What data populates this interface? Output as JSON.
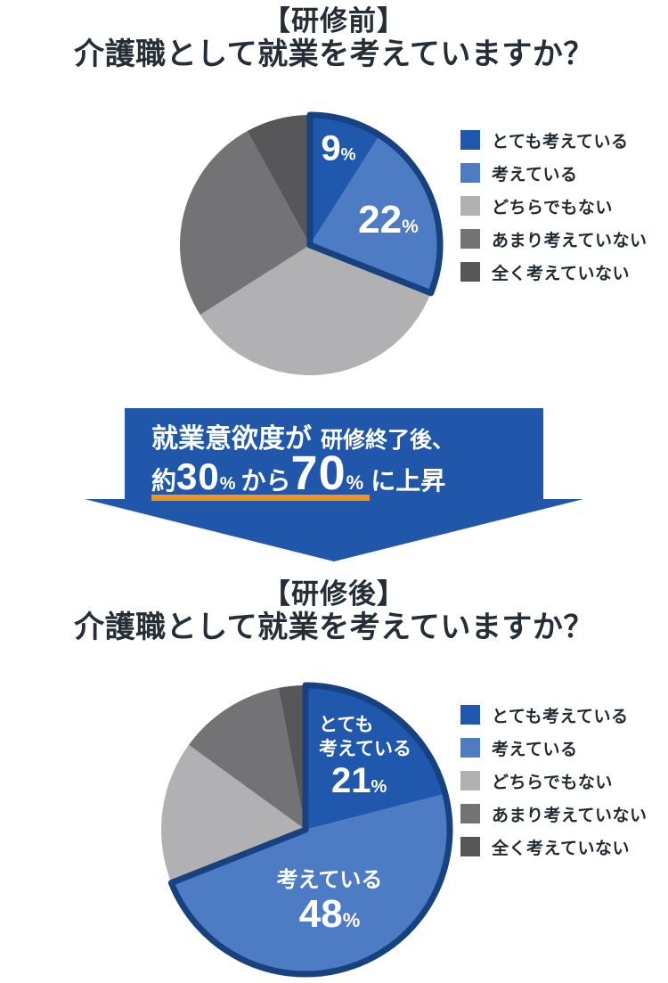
{
  "colors": {
    "background": "#ffffff",
    "title_text": "#252e37",
    "legend_text": "#222b33",
    "series": [
      "#2058ad",
      "#4d7cc5",
      "#b1b1b3",
      "#737375",
      "#57575a"
    ],
    "highlight_outline": "#17427f",
    "banner_bg": "#2057ab",
    "banner_text": "#ffffff",
    "underline_orange": "#ef941f",
    "pie_label_text": "#ffffff"
  },
  "before": {
    "title_line1": "【研修前】",
    "title_line2": "介護職として就業を考えていますか？",
    "labels": {
      "slice1_value": "9",
      "slice1_unit": "%",
      "slice2_value": "22",
      "slice2_unit": "%"
    }
  },
  "after": {
    "title_line1": "【研修後】",
    "title_line2": "介護職として就業を考えていますか？",
    "labels": {
      "slice1_name_line1": "とても",
      "slice1_name_line2": "考えている",
      "slice1_value": "21",
      "slice1_unit": "%",
      "slice2_name": "考えている",
      "slice2_value": "48",
      "slice2_unit": "%"
    }
  },
  "legend": {
    "items": [
      {
        "label": "とても考えている",
        "color": "#2058ad"
      },
      {
        "label": "考えている",
        "color": "#4d7cc5"
      },
      {
        "label": "どちらでもない",
        "color": "#b1b1b3"
      },
      {
        "label": "あまり考えていない",
        "color": "#737375"
      },
      {
        "label": "全く考えていない",
        "color": "#57575a"
      }
    ]
  },
  "banner": {
    "line1_part1": "就業意欲度が",
    "line1_part2": "研修終了後、",
    "line2_prefix": "約",
    "line2_value1": "30",
    "line2_unit1": "%",
    "line2_middle": "から",
    "line2_value2": "70",
    "line2_unit2": "%",
    "line2_suffix": "に上昇"
  },
  "chart_data": [
    {
      "type": "pie",
      "title": "【研修前】介護職として就業を考えていますか？",
      "labels": [
        "とても考えている",
        "考えている",
        "どちらでもない",
        "あまり考えていない",
        "全く考えていない"
      ],
      "values": [
        9,
        22,
        35,
        26,
        8
      ],
      "unit": "%",
      "colors": [
        "#2058ad",
        "#4d7cc5",
        "#b1b1b3",
        "#737375",
        "#57575a"
      ],
      "start_angle": "top",
      "direction": "clockwise",
      "highlight_slices": 2,
      "on_chart_labels": [
        "9%",
        "22%"
      ],
      "legend_position": "right"
    },
    {
      "type": "pie",
      "title": "【研修後】介護職として就業を考えていますか？",
      "labels": [
        "とても考えている",
        "考えている",
        "どちらでもない",
        "あまり考えていない",
        "全く考えていない"
      ],
      "values": [
        21,
        48,
        16,
        12,
        3
      ],
      "unit": "%",
      "colors": [
        "#2058ad",
        "#4d7cc5",
        "#b1b1b3",
        "#737375",
        "#57575a"
      ],
      "start_angle": "top",
      "direction": "clockwise",
      "highlight_slices": 2,
      "on_chart_labels": [
        "とても考えている 21%",
        "考えている 48%"
      ],
      "legend_position": "right"
    }
  ]
}
